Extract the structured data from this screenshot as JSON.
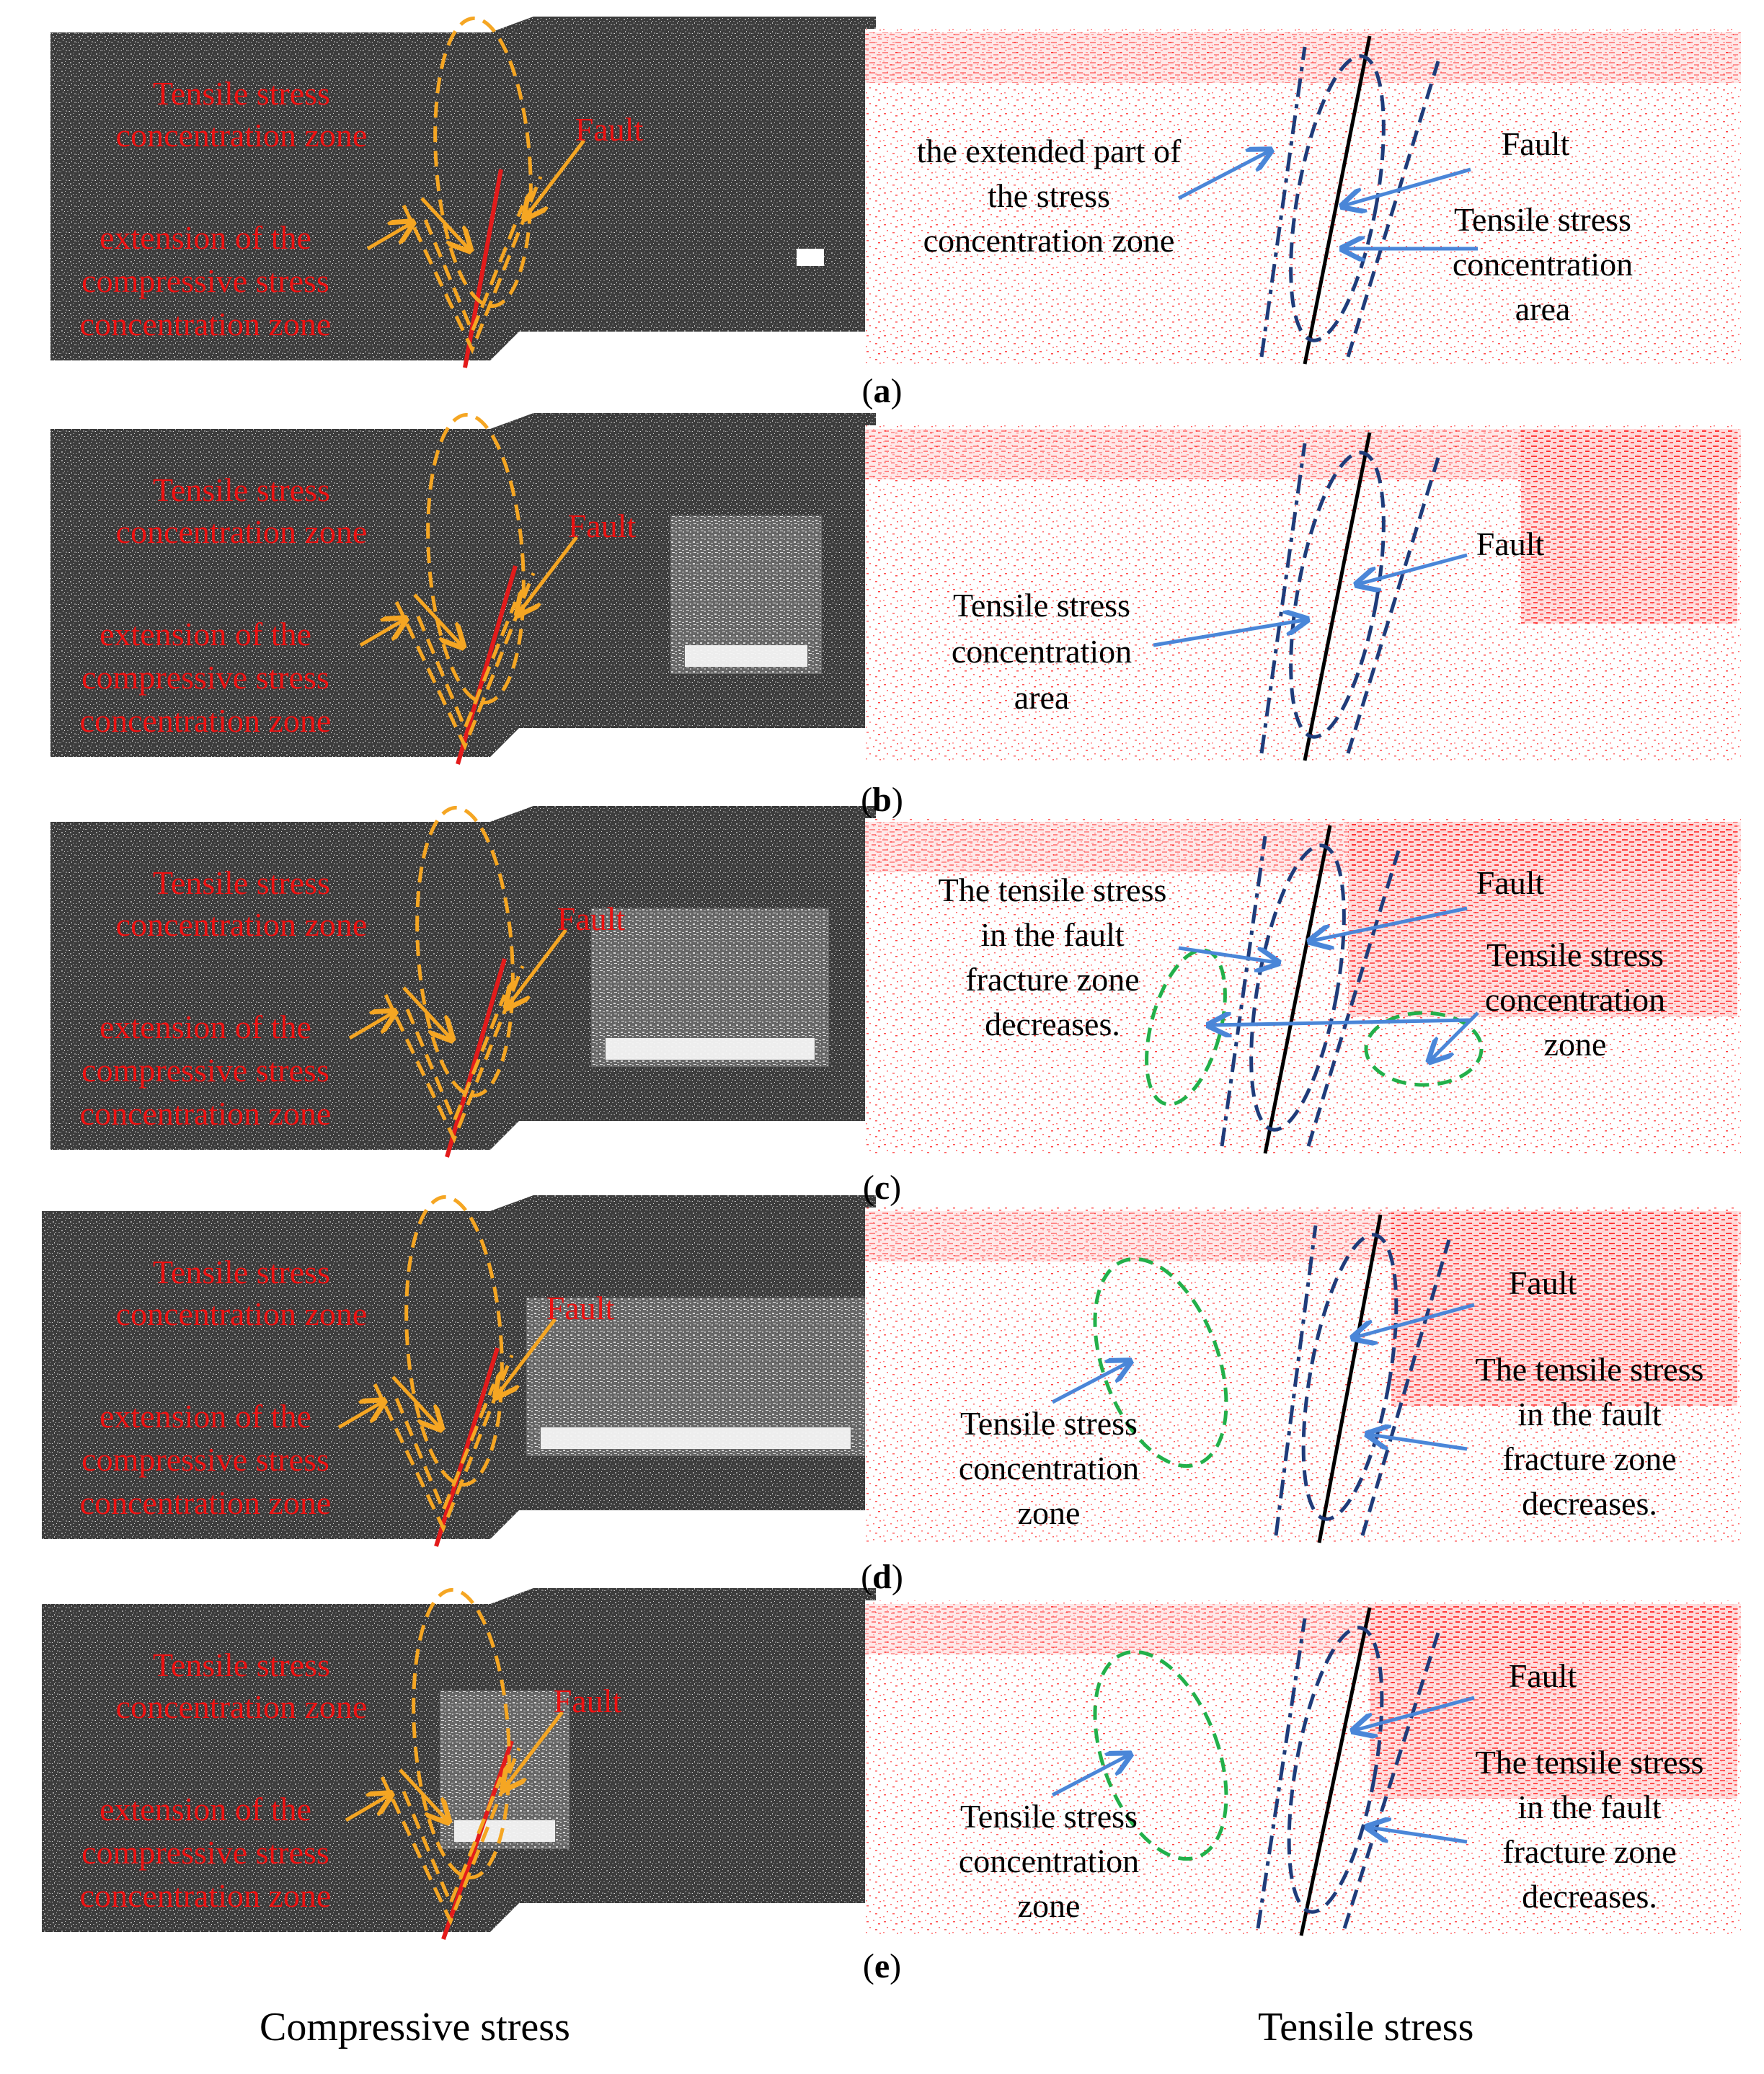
{
  "figure": {
    "panel_letters": [
      "a",
      "b",
      "c",
      "d",
      "e"
    ],
    "bottom_labels": {
      "left": "Compressive stress",
      "right": "Tensile stress"
    },
    "colors": {
      "compressive_background": "#3a3a3a",
      "annotation_red": "#ee1111",
      "fault_line_red": "#e31b1b",
      "dashed_orange": "#f5a623",
      "arrow_orange": "#f5a623",
      "arrow_blue": "#4a86d8",
      "dashed_navy": "#1f3c7a",
      "dashed_green": "#22b04a",
      "tensile_points": "#ff3a3a",
      "fault_line_black": "#000000"
    },
    "rows": [
      {
        "letter": "a",
        "left_labels": {
          "tensile_zone": [
            "Tensile stress",
            "concentration zone"
          ],
          "fault": "Fault",
          "extension": [
            "extension of the",
            "compressive stress",
            "concentration zone"
          ]
        },
        "right_labels": [
          [
            "the extended part of",
            "the stress",
            "concentration zone"
          ],
          [
            "Fault"
          ],
          [
            "Tensile stress",
            "concentration",
            "area"
          ]
        ]
      },
      {
        "letter": "b",
        "left_labels": {
          "tensile_zone": [
            "Tensile stress",
            "concentration zone"
          ],
          "fault": "Fault",
          "extension": [
            "extension of the",
            "compressive stress",
            "concentration zone"
          ]
        },
        "right_labels": [
          [
            "Fault"
          ],
          [
            "Tensile stress",
            "concentration",
            "area"
          ]
        ]
      },
      {
        "letter": "c",
        "left_labels": {
          "tensile_zone": [
            "Tensile stress",
            "concentration zone"
          ],
          "fault": "Fault",
          "extension": [
            "extension of the",
            "compressive stress",
            "concentration zone"
          ]
        },
        "right_labels": [
          [
            "The tensile stress",
            "in the fault",
            "fracture zone",
            "decreases."
          ],
          [
            "Fault"
          ],
          [
            "Tensile stress",
            "concentration",
            "zone"
          ]
        ]
      },
      {
        "letter": "d",
        "left_labels": {
          "tensile_zone": [
            "Tensile stress",
            "concentration zone"
          ],
          "fault": "Fault",
          "extension": [
            "extension of the",
            "compressive stress",
            "concentration zone"
          ]
        },
        "right_labels": [
          [
            "Fault"
          ],
          [
            "Tensile stress",
            "concentration",
            "zone"
          ],
          [
            "The tensile stress",
            "in the fault",
            "fracture zone",
            "decreases."
          ]
        ]
      },
      {
        "letter": "e",
        "left_labels": {
          "tensile_zone": [
            "Tensile stress",
            "concentration zone"
          ],
          "fault": "Fault",
          "extension": [
            "extension of the",
            "compressive stress",
            "concentration zone"
          ]
        },
        "right_labels": [
          [
            "Fault"
          ],
          [
            "Tensile stress",
            "concentration",
            "zone"
          ],
          [
            "The tensile stress",
            "in the fault",
            "fracture zone",
            "decreases."
          ]
        ]
      }
    ]
  }
}
